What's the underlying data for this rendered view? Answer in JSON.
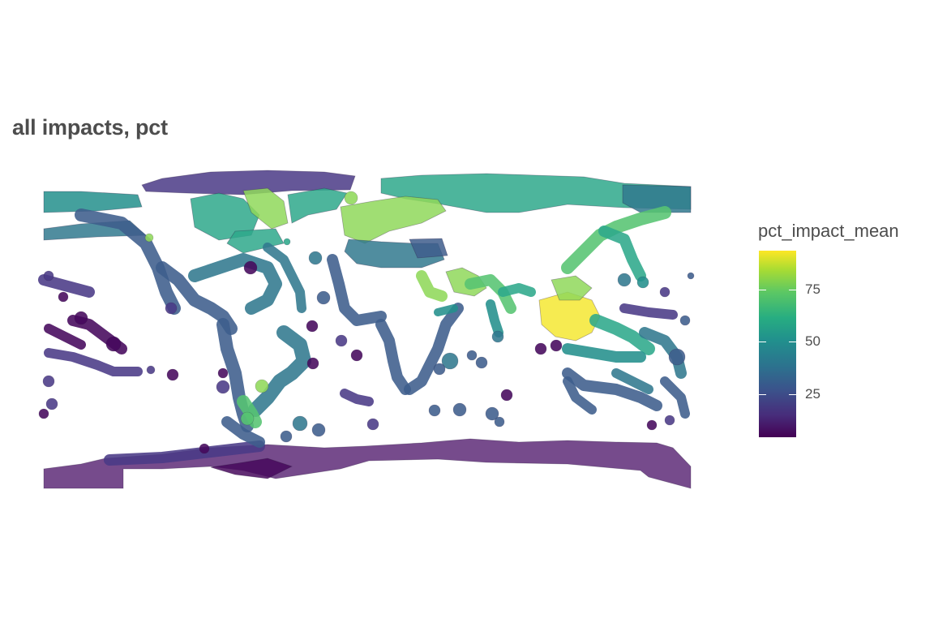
{
  "title": "all impacts, pct",
  "legend": {
    "title": "pct_impact_mean",
    "ticks": [
      {
        "value": 25,
        "label": "25"
      },
      {
        "value": 50,
        "label": "50"
      },
      {
        "value": 75,
        "label": "75"
      }
    ],
    "range": [
      4,
      92
    ],
    "palette": "viridis"
  },
  "colors": {
    "v10": "#46085c",
    "v20": "#4a3a86",
    "v30": "#3e5d8c",
    "v40": "#31798e",
    "v50": "#238f8c",
    "v60": "#2ea88b",
    "v70": "#56c472",
    "v80": "#8fd85a",
    "v90": "#f4e832",
    "v5": "#4c1d63",
    "antarctic": "#5e2b78"
  },
  "map": {
    "projection": "equirectangular",
    "fill_variable": "pct_impact_mean",
    "background": "white"
  }
}
